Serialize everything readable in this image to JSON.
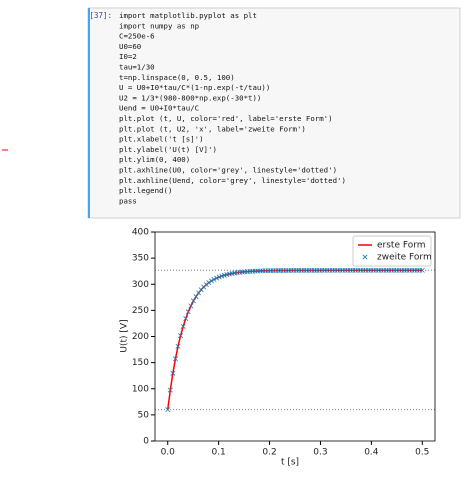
{
  "cell": {
    "prompt": "[37]:",
    "lines": [
      "import matplotlib.pyplot as plt",
      "import numpy as np",
      "C=250e-6",
      "U0=60",
      "I0=2",
      "tau=1/30",
      "t=np.linspace(0, 0.5, 100)",
      "U = U0+I0*tau/C*(1-np.exp(-t/tau))",
      "U2 = 1/3*(980-800*np.exp(-30*t))",
      "Uend = U0+I0*tau/C",
      "plt.plot (t, U, color='red', label='erste Form')",
      "plt.plot (t, U2, 'x', label='zweite Form')",
      "plt.xlabel('t [s]')",
      "plt.ylabel('U(t) [V]')",
      "plt.ylim(0, 400)",
      "plt.axhline(U0, color='grey', linestyle='dotted')",
      "plt.axhline(Uend, color='grey', linestyle='dotted')",
      "plt.legend()",
      "pass"
    ]
  },
  "chart_data": {
    "type": "line",
    "x_label": "t [s]",
    "y_label": "U(t) [V]",
    "xlim": [
      -0.025,
      0.525
    ],
    "xticks": [
      {
        "value": 0,
        "label": "0.0"
      },
      {
        "value": 0.1,
        "label": "0.1"
      },
      {
        "value": 0.2,
        "label": "0.2"
      },
      {
        "value": 0.3,
        "label": "0.3"
      },
      {
        "value": 0.4,
        "label": "0.4"
      },
      {
        "value": 0.5,
        "label": "0.5"
      }
    ],
    "ylim": [
      0,
      400
    ],
    "yticks": [
      0,
      50,
      100,
      150,
      200,
      250,
      300,
      350,
      400
    ],
    "legend": "upper right",
    "hlines": [
      {
        "value": 60,
        "color": "grey"
      },
      {
        "value": 326.7,
        "color": "grey"
      }
    ],
    "x": [
      0,
      0.0051,
      0.0101,
      0.0152,
      0.0202,
      0.0253,
      0.0303,
      0.0354,
      0.0404,
      0.0455,
      0.0505,
      0.0556,
      0.0606,
      0.0657,
      0.0707,
      0.0758,
      0.0808,
      0.0859,
      0.0909,
      0.096,
      0.101,
      0.1061,
      0.1111,
      0.1162,
      0.1212,
      0.1263,
      0.1313,
      0.1364,
      0.1414,
      0.1465,
      0.1515,
      0.1566,
      0.1616,
      0.1667,
      0.1717,
      0.1768,
      0.1818,
      0.1869,
      0.1919,
      0.197,
      0.202,
      0.2071,
      0.2121,
      0.2172,
      0.2222,
      0.2273,
      0.2323,
      0.2374,
      0.2424,
      0.2475,
      0.2525,
      0.2576,
      0.2626,
      0.2677,
      0.2727,
      0.2778,
      0.2828,
      0.2879,
      0.2929,
      0.298,
      0.303,
      0.3081,
      0.3131,
      0.3182,
      0.3232,
      0.3283,
      0.3333,
      0.3384,
      0.3434,
      0.3485,
      0.3535,
      0.3586,
      0.3636,
      0.3687,
      0.3737,
      0.3788,
      0.3838,
      0.3889,
      0.3939,
      0.399,
      0.404,
      0.4091,
      0.4141,
      0.4192,
      0.4242,
      0.4293,
      0.4343,
      0.4394,
      0.4444,
      0.4495,
      0.4545,
      0.4596,
      0.4646,
      0.4697,
      0.4747,
      0.4798,
      0.4848,
      0.4899,
      0.4949,
      0.5
    ],
    "series": [
      {
        "name": "erste Form",
        "color": "red",
        "style": "line",
        "values": [
          60,
          97.5,
          129.7,
          157.4,
          181.2,
          201.6,
          219.2,
          234.3,
          247.3,
          258.5,
          268.1,
          276.3,
          283.4,
          289.5,
          294.7,
          299.2,
          303.1,
          306.4,
          309.2,
          311.7,
          313.8,
          315.6,
          317.2,
          318.5,
          319.6,
          320.6,
          321.5,
          322.2,
          322.8,
          323.4,
          323.8,
          324.2,
          324.6,
          324.9,
          325.1,
          325.3,
          325.5,
          325.7,
          325.8,
          325.9,
          326,
          326.1,
          326.2,
          326.3,
          326.3,
          326.4,
          326.4,
          326.4,
          326.5,
          326.5,
          326.5,
          326.5,
          326.5,
          326.6,
          326.6,
          326.6,
          326.6,
          326.6,
          326.6,
          326.6,
          326.7,
          326.7,
          326.7,
          326.7,
          326.7,
          326.7,
          326.7,
          326.7,
          326.7,
          326.7,
          326.7,
          326.7,
          326.7,
          326.7,
          326.7,
          326.7,
          326.7,
          326.7,
          326.7,
          326.7,
          326.7,
          326.7,
          326.7,
          326.7,
          326.7,
          326.7,
          326.7,
          326.7,
          326.7,
          326.7,
          326.7,
          326.7,
          326.7,
          326.7,
          326.7,
          326.7,
          326.7,
          326.7,
          326.7,
          326.7
        ]
      },
      {
        "name": "zweite Form",
        "color": "#1f77b4",
        "style": "x",
        "values": [
          60,
          97.5,
          129.7,
          157.4,
          181.2,
          201.6,
          219.2,
          234.3,
          247.3,
          258.5,
          268.1,
          276.3,
          283.4,
          289.5,
          294.7,
          299.2,
          303.1,
          306.4,
          309.2,
          311.7,
          313.8,
          315.6,
          317.2,
          318.5,
          319.6,
          320.6,
          321.5,
          322.2,
          322.8,
          323.4,
          323.8,
          324.2,
          324.6,
          324.9,
          325.1,
          325.3,
          325.5,
          325.7,
          325.8,
          325.9,
          326,
          326.1,
          326.2,
          326.3,
          326.3,
          326.4,
          326.4,
          326.4,
          326.5,
          326.5,
          326.5,
          326.5,
          326.5,
          326.6,
          326.6,
          326.6,
          326.6,
          326.6,
          326.6,
          326.6,
          326.7,
          326.7,
          326.7,
          326.7,
          326.7,
          326.7,
          326.7,
          326.7,
          326.7,
          326.7,
          326.7,
          326.7,
          326.7,
          326.7,
          326.7,
          326.7,
          326.7,
          326.7,
          326.7,
          326.7,
          326.7,
          326.7,
          326.7,
          326.7,
          326.7,
          326.7,
          326.7,
          326.7,
          326.7,
          326.7,
          326.7,
          326.7,
          326.7,
          326.7,
          326.7,
          326.7,
          326.7,
          326.7,
          326.7,
          326.7
        ]
      }
    ]
  }
}
